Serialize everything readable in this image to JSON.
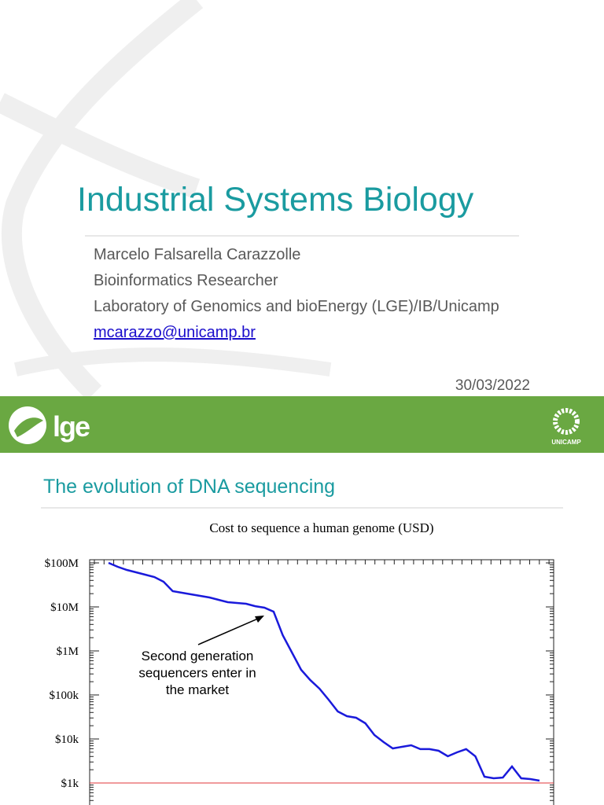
{
  "slide1": {
    "title": "Industrial Systems Biology",
    "lines": [
      "Marcelo Falsarella Carazzolle",
      "Bioinformatics Researcher",
      "Laboratory of Genomics and bioEnergy (LGE)/IB/Unicamp"
    ],
    "email": "mcarazzo@unicamp.br",
    "date": "30/03/2022",
    "logo": "lge",
    "university": "UNICAMP"
  },
  "slide2": {
    "title": "The evolution of DNA sequencing"
  },
  "chart_data": {
    "type": "line",
    "title": "Cost to sequence a human genome (USD)",
    "categories": [
      null,
      null,
      null,
      null,
      null,
      null,
      null,
      null,
      null,
      null,
      null,
      null,
      null,
      null,
      null,
      null,
      null,
      null,
      null,
      null,
      null,
      null,
      null,
      null,
      null,
      null,
      null,
      null,
      null,
      null,
      null,
      null,
      null,
      null,
      null,
      null,
      null,
      null,
      null,
      null,
      null,
      null,
      null,
      null,
      null,
      null,
      null,
      null
    ],
    "values": [
      100000000,
      81500000,
      69100000,
      61100000,
      54000000,
      47700000,
      37300000,
      22800000,
      21000000,
      19300000,
      17800000,
      16400000,
      14500000,
      12800000,
      12300000,
      11800000,
      10400000,
      9600000,
      7800000,
      2280000,
      920000,
      373000,
      218000,
      139000,
      78100,
      42200,
      33000,
      30400,
      22800,
      12300,
      8480,
      6100,
      6630,
      7200,
      5870,
      5870,
      5400,
      4050,
      4970,
      5870,
      4050,
      1390,
      1280,
      1330,
      2370,
      1280,
      1230,
      1130
    ],
    "color": "#1a1adb",
    "log_scale": true,
    "ylim": [
      316,
      118000000
    ],
    "yticks": [
      {
        "value": 1000,
        "label": "$1k"
      },
      {
        "value": 10000,
        "label": "$10k"
      },
      {
        "value": 100000,
        "label": "$100k"
      },
      {
        "value": 1000000,
        "label": "$1M"
      },
      {
        "value": 10000000,
        "label": "$10M"
      },
      {
        "value": 100000000,
        "label": "$100M"
      }
    ],
    "reference_line": {
      "value": 1000,
      "color": "#e0353a"
    },
    "annotation": [
      "Second generation",
      "sequencers enter in",
      "the market"
    ]
  }
}
